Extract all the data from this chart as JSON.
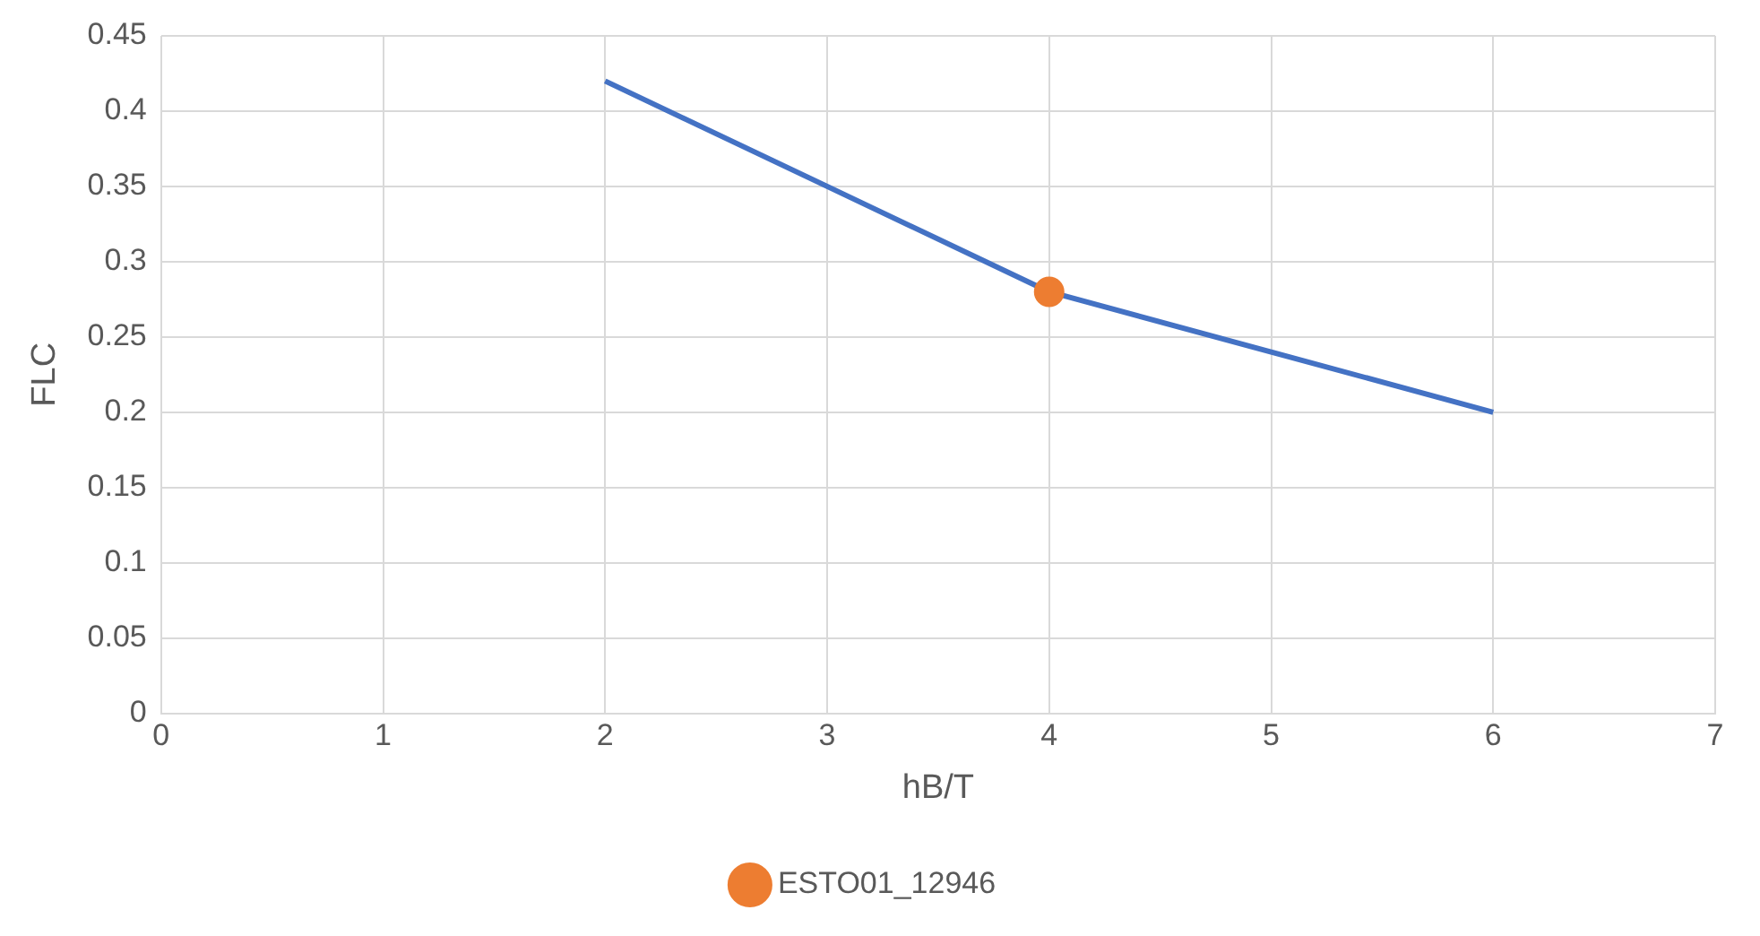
{
  "chart_data": {
    "type": "line",
    "xlabel": "hB/T",
    "ylabel": "FLC",
    "xlim": [
      0,
      7
    ],
    "xticks": [
      0,
      1,
      2,
      3,
      4,
      5,
      6,
      7
    ],
    "ylim": [
      0,
      0.45
    ],
    "yticks": [
      0,
      0.05,
      0.1,
      0.15,
      0.2,
      0.25,
      0.3,
      0.35,
      0.4,
      0.45
    ],
    "grid": true,
    "legend": "bottom",
    "series": [
      {
        "type": "line",
        "color": "#4472c4",
        "marker": "none",
        "x": [
          2,
          3,
          4,
          5,
          6
        ],
        "values": [
          0.42,
          0.35,
          0.28,
          0.24,
          0.2
        ]
      },
      {
        "type": "scatter",
        "name": "ESTO01_12946",
        "color": "#ed7d31",
        "marker": "circle",
        "x": [
          4
        ],
        "values": [
          0.28
        ]
      }
    ]
  }
}
